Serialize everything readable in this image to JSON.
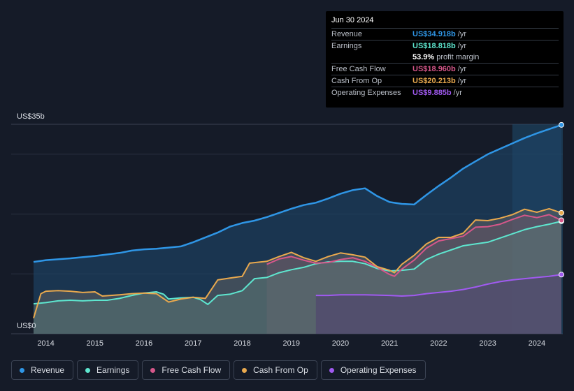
{
  "tooltip": {
    "date": "Jun 30 2024",
    "rows": [
      {
        "label": "Revenue",
        "value": "US$34.918b",
        "unit": "/yr",
        "color": "#2f96e6"
      },
      {
        "label": "Earnings",
        "value": "US$18.818b",
        "unit": "/yr",
        "color": "#5ee6cf"
      },
      {
        "label": "",
        "value": "53.9%",
        "unit": "profit margin",
        "color": "#ffffff"
      },
      {
        "label": "Free Cash Flow",
        "value": "US$18.960b",
        "unit": "/yr",
        "color": "#d6578a"
      },
      {
        "label": "Cash From Op",
        "value": "US$20.213b",
        "unit": "/yr",
        "color": "#e9a94e"
      },
      {
        "label": "Operating Expenses",
        "value": "US$9.885b",
        "unit": "/yr",
        "color": "#a05af0"
      }
    ]
  },
  "legend": [
    {
      "label": "Revenue",
      "color": "#2f96e6"
    },
    {
      "label": "Earnings",
      "color": "#5ee6cf"
    },
    {
      "label": "Free Cash Flow",
      "color": "#d6578a"
    },
    {
      "label": "Cash From Op",
      "color": "#e9a94e"
    },
    {
      "label": "Operating Expenses",
      "color": "#a05af0"
    }
  ],
  "chart_data": {
    "type": "area",
    "title": "",
    "ylabel_top": "US$35b",
    "ylabel_bottom": "US$0",
    "ylim": [
      0,
      35
    ],
    "xlim": [
      2013.75,
      2024.5
    ],
    "highlight_start": 2023.5,
    "x_ticks": [
      "2014",
      "2015",
      "2016",
      "2017",
      "2018",
      "2019",
      "2020",
      "2021",
      "2022",
      "2023",
      "2024"
    ],
    "series": [
      {
        "name": "Revenue",
        "color": "#2f96e6",
        "points": [
          [
            2013.75,
            12.0
          ],
          [
            2014,
            12.3
          ],
          [
            2014.5,
            12.6
          ],
          [
            2015,
            13.0
          ],
          [
            2015.5,
            13.5
          ],
          [
            2015.75,
            13.9
          ],
          [
            2016,
            14.1
          ],
          [
            2016.25,
            14.2
          ],
          [
            2016.5,
            14.4
          ],
          [
            2016.75,
            14.6
          ],
          [
            2017,
            15.3
          ],
          [
            2017.5,
            16.9
          ],
          [
            2017.75,
            17.9
          ],
          [
            2018,
            18.5
          ],
          [
            2018.25,
            18.9
          ],
          [
            2018.5,
            19.5
          ],
          [
            2018.75,
            20.2
          ],
          [
            2019,
            20.9
          ],
          [
            2019.25,
            21.5
          ],
          [
            2019.5,
            21.9
          ],
          [
            2019.75,
            22.6
          ],
          [
            2020,
            23.4
          ],
          [
            2020.25,
            24.0
          ],
          [
            2020.5,
            24.3
          ],
          [
            2020.75,
            23.0
          ],
          [
            2021,
            22.0
          ],
          [
            2021.25,
            21.7
          ],
          [
            2021.5,
            21.6
          ],
          [
            2021.75,
            23.2
          ],
          [
            2022,
            24.7
          ],
          [
            2022.25,
            26.1
          ],
          [
            2022.5,
            27.6
          ],
          [
            2022.75,
            28.8
          ],
          [
            2023,
            30.0
          ],
          [
            2023.25,
            30.9
          ],
          [
            2023.5,
            31.8
          ],
          [
            2023.75,
            32.7
          ],
          [
            2024,
            33.5
          ],
          [
            2024.25,
            34.2
          ],
          [
            2024.5,
            34.9
          ]
        ]
      },
      {
        "name": "Earnings",
        "color": "#5ee6cf",
        "points": [
          [
            2013.75,
            5.0
          ],
          [
            2014,
            5.2
          ],
          [
            2014.25,
            5.5
          ],
          [
            2014.5,
            5.6
          ],
          [
            2014.75,
            5.5
          ],
          [
            2015,
            5.6
          ],
          [
            2015.25,
            5.6
          ],
          [
            2015.5,
            5.9
          ],
          [
            2015.75,
            6.4
          ],
          [
            2016,
            6.8
          ],
          [
            2016.25,
            7.0
          ],
          [
            2016.4,
            6.6
          ],
          [
            2016.5,
            5.8
          ],
          [
            2016.75,
            6.0
          ],
          [
            2017,
            6.1
          ],
          [
            2017.15,
            5.7
          ],
          [
            2017.3,
            4.9
          ],
          [
            2017.5,
            6.4
          ],
          [
            2017.75,
            6.6
          ],
          [
            2018,
            7.2
          ],
          [
            2018.25,
            9.2
          ],
          [
            2018.5,
            9.4
          ],
          [
            2018.75,
            10.2
          ],
          [
            2019,
            10.7
          ],
          [
            2019.25,
            11.1
          ],
          [
            2019.5,
            11.7
          ],
          [
            2019.75,
            12.0
          ],
          [
            2020,
            12.1
          ],
          [
            2020.25,
            12.1
          ],
          [
            2020.5,
            11.7
          ],
          [
            2020.75,
            10.9
          ],
          [
            2021,
            10.5
          ],
          [
            2021.25,
            10.6
          ],
          [
            2021.5,
            10.8
          ],
          [
            2021.75,
            12.4
          ],
          [
            2022,
            13.3
          ],
          [
            2022.25,
            14.0
          ],
          [
            2022.5,
            14.7
          ],
          [
            2022.75,
            15.0
          ],
          [
            2023,
            15.3
          ],
          [
            2023.25,
            16.0
          ],
          [
            2023.5,
            16.7
          ],
          [
            2023.75,
            17.4
          ],
          [
            2024,
            17.9
          ],
          [
            2024.25,
            18.3
          ],
          [
            2024.5,
            18.8
          ]
        ]
      },
      {
        "name": "Free Cash Flow",
        "color": "#d6578a",
        "points": [
          [
            2018.5,
            11.6
          ],
          [
            2018.75,
            12.5
          ],
          [
            2019,
            12.9
          ],
          [
            2019.25,
            12.3
          ],
          [
            2019.5,
            11.8
          ],
          [
            2019.75,
            11.9
          ],
          [
            2020,
            12.4
          ],
          [
            2020.25,
            12.7
          ],
          [
            2020.5,
            12.1
          ],
          [
            2020.75,
            11.1
          ],
          [
            2021,
            9.9
          ],
          [
            2021.1,
            9.6
          ],
          [
            2021.25,
            10.8
          ],
          [
            2021.5,
            12.3
          ],
          [
            2021.75,
            14.3
          ],
          [
            2022,
            15.5
          ],
          [
            2022.25,
            15.9
          ],
          [
            2022.5,
            16.3
          ],
          [
            2022.75,
            17.8
          ],
          [
            2023,
            17.9
          ],
          [
            2023.25,
            18.3
          ],
          [
            2023.5,
            19.1
          ],
          [
            2023.75,
            19.8
          ],
          [
            2024,
            19.4
          ],
          [
            2024.25,
            19.9
          ],
          [
            2024.5,
            18.96
          ]
        ]
      },
      {
        "name": "Cash From Op",
        "color": "#e9a94e",
        "points": [
          [
            2013.75,
            2.6
          ],
          [
            2013.9,
            6.7
          ],
          [
            2014,
            7.1
          ],
          [
            2014.25,
            7.2
          ],
          [
            2014.5,
            7.1
          ],
          [
            2014.75,
            6.9
          ],
          [
            2015,
            7.0
          ],
          [
            2015.15,
            6.3
          ],
          [
            2015.5,
            6.5
          ],
          [
            2015.75,
            6.7
          ],
          [
            2016,
            6.8
          ],
          [
            2016.25,
            6.7
          ],
          [
            2016.5,
            5.3
          ],
          [
            2016.75,
            5.8
          ],
          [
            2017,
            6.1
          ],
          [
            2017.25,
            5.9
          ],
          [
            2017.5,
            9.0
          ],
          [
            2017.75,
            9.3
          ],
          [
            2018,
            9.6
          ],
          [
            2018.15,
            11.8
          ],
          [
            2018.5,
            12.1
          ],
          [
            2018.75,
            12.9
          ],
          [
            2019,
            13.6
          ],
          [
            2019.25,
            12.7
          ],
          [
            2019.5,
            12.1
          ],
          [
            2019.75,
            12.9
          ],
          [
            2020,
            13.5
          ],
          [
            2020.25,
            13.2
          ],
          [
            2020.5,
            12.8
          ],
          [
            2020.75,
            11.2
          ],
          [
            2021,
            10.6
          ],
          [
            2021.1,
            10.2
          ],
          [
            2021.25,
            11.6
          ],
          [
            2021.5,
            13.1
          ],
          [
            2021.75,
            15.0
          ],
          [
            2022,
            16.1
          ],
          [
            2022.25,
            16.1
          ],
          [
            2022.5,
            16.8
          ],
          [
            2022.75,
            19.0
          ],
          [
            2023,
            18.9
          ],
          [
            2023.25,
            19.3
          ],
          [
            2023.5,
            19.9
          ],
          [
            2023.75,
            20.8
          ],
          [
            2024,
            20.3
          ],
          [
            2024.25,
            20.9
          ],
          [
            2024.5,
            20.2
          ]
        ]
      },
      {
        "name": "Operating Expenses",
        "color": "#a05af0",
        "points": [
          [
            2019.5,
            6.4
          ],
          [
            2019.75,
            6.4
          ],
          [
            2020,
            6.5
          ],
          [
            2020.5,
            6.5
          ],
          [
            2021,
            6.4
          ],
          [
            2021.25,
            6.3
          ],
          [
            2021.5,
            6.4
          ],
          [
            2021.75,
            6.7
          ],
          [
            2022,
            6.9
          ],
          [
            2022.25,
            7.1
          ],
          [
            2022.5,
            7.4
          ],
          [
            2022.75,
            7.8
          ],
          [
            2023,
            8.3
          ],
          [
            2023.25,
            8.7
          ],
          [
            2023.5,
            9.0
          ],
          [
            2023.75,
            9.2
          ],
          [
            2024,
            9.4
          ],
          [
            2024.25,
            9.6
          ],
          [
            2024.5,
            9.885
          ]
        ]
      }
    ]
  }
}
